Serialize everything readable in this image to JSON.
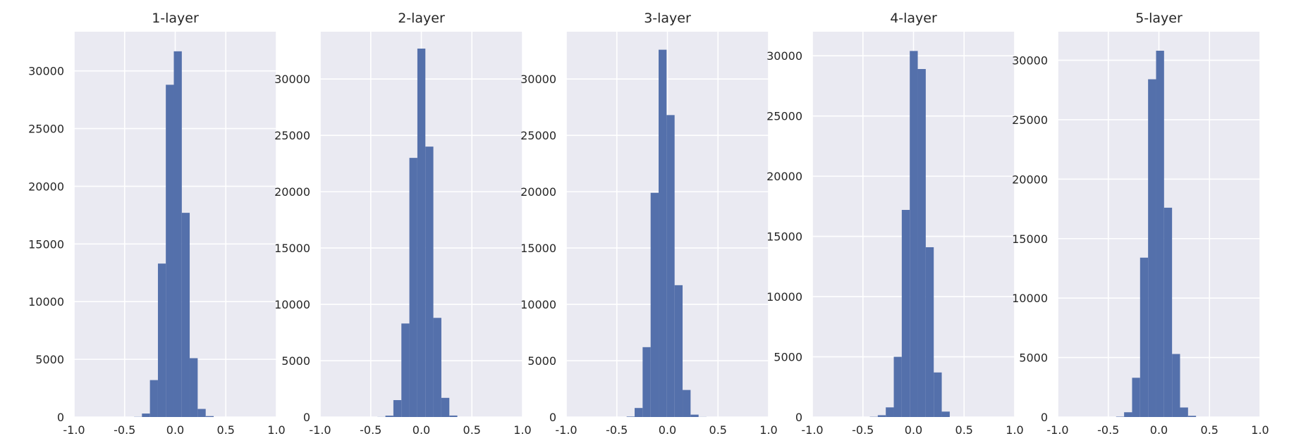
{
  "chart_data": [
    {
      "type": "bar",
      "title": "1-layer",
      "xlim": [
        -1.0,
        1.0
      ],
      "ylim": [
        0,
        33400
      ],
      "xticks": [
        -1.0,
        -0.5,
        0.0,
        0.5,
        1.0
      ],
      "xtick_labels": [
        "-1.0",
        "-0.5",
        "0.0",
        "0.5",
        "1.0"
      ],
      "yticks": [
        0,
        5000,
        10000,
        15000,
        20000,
        25000,
        30000
      ],
      "ytick_labels": [
        "0",
        "5000",
        "10000",
        "15000",
        "20000",
        "25000",
        "30000"
      ],
      "bin_edges": [
        -0.407,
        -0.329,
        -0.25,
        -0.171,
        -0.093,
        -0.014,
        0.065,
        0.143,
        0.222,
        0.301,
        0.38
      ],
      "counts": [
        15,
        300,
        3200,
        13300,
        28800,
        31700,
        17700,
        5100,
        700,
        80
      ],
      "grid": true,
      "color": "#5470ab"
    },
    {
      "type": "bar",
      "title": "2-layer",
      "xlim": [
        -1.0,
        1.0
      ],
      "ylim": [
        0,
        34200
      ],
      "xticks": [
        -1.0,
        -0.5,
        0.0,
        0.5,
        1.0
      ],
      "xtick_labels": [
        "-1.0",
        "-0.5",
        "0.0",
        "0.5",
        "1.0"
      ],
      "yticks": [
        0,
        5000,
        10000,
        15000,
        20000,
        25000,
        30000
      ],
      "ytick_labels": [
        "0",
        "5000",
        "10000",
        "15000",
        "20000",
        "25000",
        "30000"
      ],
      "bin_edges": [
        -0.434,
        -0.355,
        -0.276,
        -0.197,
        -0.118,
        -0.039,
        0.04,
        0.119,
        0.198,
        0.277,
        0.356
      ],
      "counts": [
        10,
        120,
        1500,
        8300,
        23000,
        32700,
        24000,
        8800,
        1700,
        130
      ],
      "grid": true,
      "color": "#5470ab"
    },
    {
      "type": "bar",
      "title": "3-layer",
      "xlim": [
        -1.0,
        1.0
      ],
      "ylim": [
        0,
        34200
      ],
      "xticks": [
        -1.0,
        -0.5,
        0.0,
        0.5,
        1.0
      ],
      "xtick_labels": [
        "-1.0",
        "-0.5",
        "0.0",
        "0.5",
        "1.0"
      ],
      "yticks": [
        0,
        5000,
        10000,
        15000,
        20000,
        25000,
        30000
      ],
      "ytick_labels": [
        "0",
        "5000",
        "10000",
        "15000",
        "20000",
        "25000",
        "30000"
      ],
      "bin_edges": [
        -0.403,
        -0.324,
        -0.245,
        -0.166,
        -0.087,
        -0.008,
        0.071,
        0.15,
        0.229,
        0.308,
        0.387
      ],
      "counts": [
        40,
        800,
        6200,
        19900,
        32600,
        26800,
        11700,
        2400,
        210,
        10
      ],
      "grid": true,
      "color": "#5470ab"
    },
    {
      "type": "bar",
      "title": "4-layer",
      "xlim": [
        -1.0,
        1.0
      ],
      "ylim": [
        0,
        32000
      ],
      "xticks": [
        -1.0,
        -0.5,
        0.0,
        0.5,
        1.0
      ],
      "xtick_labels": [
        "-1.0",
        "-0.5",
        "0.0",
        "0.5",
        "1.0"
      ],
      "yticks": [
        0,
        5000,
        10000,
        15000,
        20000,
        25000,
        30000
      ],
      "ytick_labels": [
        "0",
        "5000",
        "10000",
        "15000",
        "20000",
        "25000",
        "30000"
      ],
      "bin_edges": [
        -0.432,
        -0.353,
        -0.274,
        -0.195,
        -0.116,
        -0.037,
        0.042,
        0.121,
        0.2,
        0.279,
        0.358
      ],
      "counts": [
        20,
        150,
        800,
        5000,
        17200,
        30400,
        28900,
        14100,
        3700,
        450
      ],
      "grid": true,
      "color": "#5470ab"
    },
    {
      "type": "bar",
      "title": "5-layer",
      "xlim": [
        -1.0,
        1.0
      ],
      "ylim": [
        0,
        32400
      ],
      "xticks": [
        -1.0,
        -0.5,
        0.0,
        0.5,
        1.0
      ],
      "xtick_labels": [
        "-1.0",
        "-0.5",
        "0.0",
        "0.5",
        "1.0"
      ],
      "yticks": [
        0,
        5000,
        10000,
        15000,
        20000,
        25000,
        30000
      ],
      "ytick_labels": [
        "0",
        "5000",
        "10000",
        "15000",
        "20000",
        "25000",
        "30000"
      ],
      "bin_edges": [
        -0.423,
        -0.344,
        -0.265,
        -0.186,
        -0.107,
        -0.028,
        0.051,
        0.13,
        0.209,
        0.288,
        0.367
      ],
      "counts": [
        30,
        400,
        3300,
        13400,
        28400,
        30800,
        17600,
        5300,
        800,
        100
      ],
      "grid": true,
      "color": "#5470ab"
    }
  ]
}
